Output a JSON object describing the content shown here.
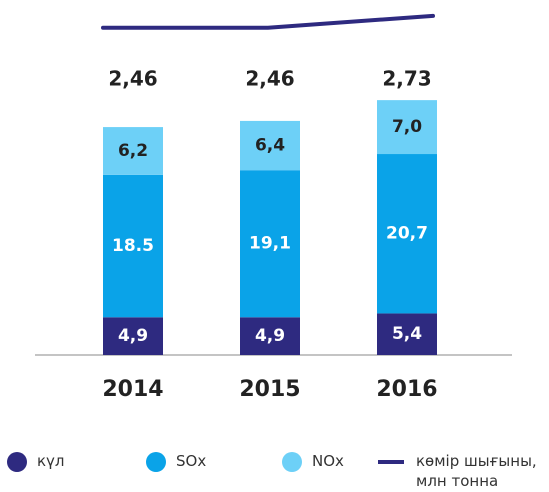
{
  "chart_data": {
    "type": "stacked_bar_line",
    "categories": [
      "2014",
      "2015",
      "2016"
    ],
    "series": [
      {
        "name": "күл",
        "color": "#2e2a80",
        "values": [
          4.9,
          4.9,
          5.4
        ],
        "value_labels": [
          "4,9",
          "4,9",
          "5,4"
        ]
      },
      {
        "name": "SOx",
        "color": "#0aa3e8",
        "values": [
          18.5,
          19.1,
          20.7
        ],
        "value_labels": [
          "18.5",
          "19,1",
          "20,7"
        ]
      },
      {
        "name": "NOx",
        "color": "#6dd0f7",
        "values": [
          6.2,
          6.4,
          7.0
        ],
        "value_labels": [
          "6,2",
          "6,4",
          "7,0"
        ]
      },
      {
        "name": "көмір шығыны, млн тонна",
        "color": "#2e2a80",
        "type": "line",
        "axis": "y2",
        "values": [
          2.46,
          2.46,
          2.73
        ],
        "value_labels": [
          "2,46",
          "2,46",
          "2,73"
        ]
      }
    ]
  }
}
